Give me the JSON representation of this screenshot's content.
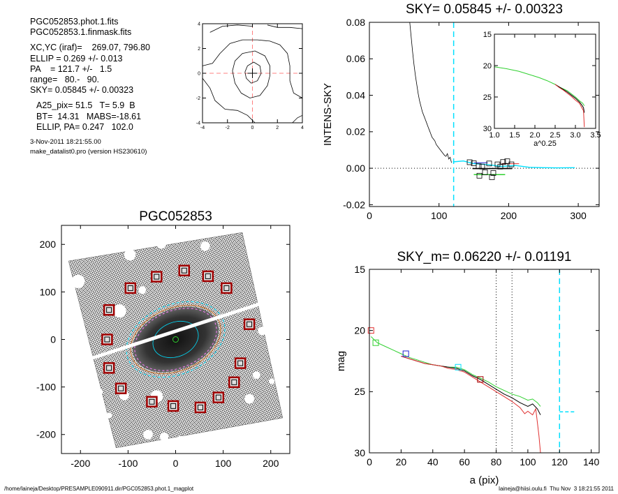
{
  "info": {
    "lines_a": [
      "PGC052853.phot.1.fits",
      "PGC052853.1.finmask.fits"
    ],
    "lines_b": [
      "XC,YC (iraf)=    269.07, 796.80",
      "ELLIP = 0.269 +/- 0.013",
      "PA    = 121.7 +/-   1.5",
      "range=   80.-   90.",
      "SKY= 0.05845 +/- 0.00323"
    ],
    "lines_c": [
      "A25_pix= 51.5   T= 5.9  B",
      "BT=  14.31   MABS=-18.61",
      "ELLIP, PA= 0.247   102.0"
    ],
    "date": "3-Nov-2011 18:21:55.00",
    "program": "make_datalist0.pro (version HS230610)"
  },
  "footer": {
    "left": "/home/laineja/Desktop/PRESAMPLE090911.dir/PGC052853.phot.1_magplot",
    "right": "laineja@hiisi.oulu.fi  Thu Nov  3 18:21:55 2011"
  },
  "colors": {
    "grid": "#ff8080",
    "cyan": "#00e0ff",
    "red": "#e03030",
    "green": "#30d030",
    "blue": "#2020d0",
    "darkred": "#a00000"
  },
  "chart_data": [
    {
      "type": "contour",
      "title": "",
      "xlim": [
        -4,
        4
      ],
      "ylim": [
        -4,
        4
      ],
      "xticks": [
        -4,
        -2,
        0,
        2,
        4
      ],
      "yticks": [
        -4,
        -2,
        0,
        2,
        4
      ],
      "tick_labels_x": [
        "-4",
        "-2",
        "0",
        "2",
        "4"
      ],
      "tick_labels_y": [
        "-4",
        "-2",
        "0",
        "2",
        "4"
      ],
      "crosshair": [
        0,
        0
      ],
      "contours": [
        [
          [
            -1.6,
            0.2
          ],
          [
            -1.4,
            1.0
          ],
          [
            -0.8,
            1.6
          ],
          [
            0.2,
            1.8
          ],
          [
            1.0,
            1.4
          ],
          [
            1.4,
            0.6
          ],
          [
            1.4,
            -0.2
          ],
          [
            1.2,
            -1.0
          ],
          [
            0.6,
            -1.8
          ],
          [
            -0.2,
            -2.0
          ],
          [
            -0.9,
            -1.6
          ],
          [
            -1.4,
            -0.8
          ],
          [
            -1.6,
            0.2
          ]
        ],
        [
          [
            -0.6,
            0.1
          ],
          [
            -0.4,
            0.6
          ],
          [
            0.1,
            0.9
          ],
          [
            0.6,
            0.6
          ],
          [
            0.7,
            0.0
          ],
          [
            0.4,
            -0.6
          ],
          [
            -0.1,
            -0.8
          ],
          [
            -0.5,
            -0.4
          ],
          [
            -0.6,
            0.1
          ]
        ],
        [
          [
            -3.4,
            3.3
          ],
          [
            -2.4,
            3.8
          ],
          [
            -1.2,
            3.9
          ],
          [
            0.0,
            3.8
          ]
        ],
        [
          [
            1.2,
            3.9
          ],
          [
            2.0,
            3.7
          ],
          [
            3.0,
            3.7
          ],
          [
            4.0,
            3.6
          ]
        ],
        [
          [
            -4.0,
            0.6
          ],
          [
            -3.2,
            0.8
          ],
          [
            -2.6,
            1.6
          ],
          [
            -1.8,
            2.4
          ],
          [
            -0.8,
            2.7
          ],
          [
            0.4,
            2.7
          ],
          [
            1.4,
            2.6
          ],
          [
            2.2,
            2.3
          ],
          [
            2.8,
            1.6
          ],
          [
            3.0,
            0.6
          ],
          [
            3.0,
            -0.6
          ],
          [
            3.3,
            -1.6
          ],
          [
            4.0,
            -2.0
          ]
        ],
        [
          [
            -4.0,
            -0.4
          ],
          [
            -3.4,
            -1.2
          ],
          [
            -3.0,
            -2.2
          ],
          [
            -2.2,
            -2.9
          ],
          [
            -1.2,
            -3.0
          ],
          [
            -0.4,
            -3.4
          ],
          [
            0.2,
            -4.0
          ]
        ],
        [
          [
            3.2,
            -4.0
          ],
          [
            3.6,
            -3.6
          ],
          [
            4.0,
            -3.4
          ]
        ]
      ]
    },
    {
      "type": "line",
      "title": "SKY= 0.05845 +/- 0.00323",
      "xlabel": "",
      "ylabel": "INTENS-SKY",
      "xlim": [
        0,
        330
      ],
      "ylim": [
        -0.021,
        0.08
      ],
      "xticks": [
        0,
        100,
        200,
        300
      ],
      "yticks": [
        -0.02,
        0.0,
        0.02,
        0.04,
        0.06,
        0.08
      ],
      "tick_labels_x": [
        "0",
        "100",
        "200",
        "300"
      ],
      "tick_labels_y": [
        "-0.02",
        "0.00",
        "0.02",
        "0.04",
        "0.06",
        "0.08"
      ],
      "vline_x": 121,
      "hline_y": 0,
      "profile": [
        [
          58,
          0.08
        ],
        [
          60,
          0.072
        ],
        [
          62,
          0.064
        ],
        [
          64,
          0.057
        ],
        [
          66,
          0.051
        ],
        [
          68,
          0.046
        ],
        [
          70,
          0.041
        ],
        [
          72,
          0.037
        ],
        [
          74,
          0.034
        ],
        [
          76,
          0.031
        ],
        [
          78,
          0.029
        ],
        [
          80,
          0.027
        ],
        [
          82,
          0.025
        ],
        [
          84,
          0.023
        ],
        [
          86,
          0.021
        ],
        [
          88,
          0.019
        ],
        [
          90,
          0.017
        ],
        [
          92,
          0.016
        ],
        [
          94,
          0.015
        ],
        [
          96,
          0.013
        ],
        [
          98,
          0.012
        ],
        [
          100,
          0.011
        ],
        [
          102,
          0.01
        ],
        [
          104,
          0.009
        ],
        [
          106,
          0.008
        ],
        [
          108,
          0.007
        ],
        [
          110,
          0.0065
        ],
        [
          112,
          0.008
        ],
        [
          114,
          0.005
        ],
        [
          116,
          0.006
        ],
        [
          118,
          0.003
        ]
      ],
      "cyan_line": [
        [
          120,
          0.0035
        ],
        [
          135,
          0.004
        ],
        [
          150,
          0.0025
        ],
        [
          170,
          0.002
        ],
        [
          190,
          0.001
        ],
        [
          210,
          0.0015
        ],
        [
          230,
          0.0005
        ],
        [
          250,
          0.0003
        ],
        [
          270,
          0.0002
        ],
        [
          295,
          0.0003
        ]
      ],
      "red_segment": [
        [
          190,
          0.0025
        ],
        [
          215,
          0.0025
        ]
      ],
      "green_segment": [
        [
          150,
          -0.0035
        ],
        [
          195,
          -0.0035
        ]
      ],
      "black_segment": [
        [
          148,
          -0.0002
        ],
        [
          205,
          -0.0002
        ]
      ],
      "blue_segment": [
        [
          150,
          0.003
        ],
        [
          170,
          0.003
        ]
      ],
      "squares": [
        [
          144,
          0.0033
        ],
        [
          150,
          0.0027
        ],
        [
          157,
          0.0011
        ],
        [
          158,
          -0.0041
        ],
        [
          162,
          0.0009
        ],
        [
          166,
          -0.0022
        ],
        [
          172,
          0.0026
        ],
        [
          176,
          -0.0049
        ],
        [
          178,
          -0.0026
        ],
        [
          184,
          0.0021
        ],
        [
          188,
          0.0009
        ],
        [
          192,
          0.0034
        ],
        [
          195,
          0.0013
        ],
        [
          198,
          0.0038
        ],
        [
          204,
          0.0021
        ]
      ],
      "inset": {
        "xlim": [
          1.0,
          3.5
        ],
        "ylim": [
          30,
          15
        ],
        "xlabel": "a^0.25",
        "xticks": [
          1.0,
          1.5,
          2.0,
          2.5,
          3.0,
          3.5
        ],
        "yticks": [
          15,
          20,
          25,
          30
        ],
        "tick_labels_x": [
          "1.0",
          "1.5",
          "2.0",
          "2.5",
          "3.0",
          "3.5"
        ],
        "tick_labels_y": [
          "15",
          "20",
          "25",
          "30"
        ],
        "series": [
          {
            "color": "green",
            "x": [
              1.0,
              1.3,
              1.6,
              1.9,
              2.1,
              2.3,
              2.5,
              2.6,
              2.7,
              2.8,
              2.9,
              3.0,
              3.1,
              3.18,
              3.22
            ],
            "y": [
              20.2,
              20.5,
              20.9,
              21.5,
              21.9,
              22.4,
              23.0,
              23.4,
              23.7,
              24.0,
              24.5,
              25.0,
              25.6,
              26.0,
              26.4
            ]
          },
          {
            "color": "black",
            "x": [
              2.5,
              2.6,
              2.7,
              2.8,
              2.9,
              3.0,
              3.1,
              3.15,
              3.2,
              3.22
            ],
            "y": [
              23.0,
              23.4,
              23.8,
              24.2,
              24.7,
              25.2,
              25.8,
              26.2,
              26.7,
              27.5
            ]
          },
          {
            "color": "red",
            "x": [
              2.5,
              2.6,
              2.7,
              2.8,
              2.9,
              3.0,
              3.1,
              3.15,
              3.2,
              3.22
            ],
            "y": [
              23.0,
              23.5,
              23.9,
              24.4,
              24.9,
              25.5,
              26.0,
              26.6,
              27.2,
              29.8
            ]
          }
        ]
      }
    },
    {
      "type": "scatter",
      "title": "PGC052853",
      "xlim": [
        -240,
        240
      ],
      "ylim": [
        -240,
        240
      ],
      "xticks": [
        -200,
        -100,
        0,
        100,
        200
      ],
      "yticks": [
        -200,
        -100,
        0,
        100,
        200
      ],
      "tick_labels_x": [
        "-200",
        "-100",
        "0",
        "100",
        "200"
      ],
      "tick_labels_y": [
        "-200",
        "-100",
        "0",
        "100",
        "200"
      ],
      "field_corners": [
        [
          -125,
          -228
        ],
        [
          225,
          -165
        ],
        [
          140,
          225
        ],
        [
          -225,
          165
        ]
      ],
      "galaxy": {
        "center": [
          0,
          0
        ],
        "a": 90,
        "b": 60,
        "pa_deg": 23
      },
      "streak": {
        "from": [
          -240,
          -60
        ],
        "to": [
          240,
          95
        ]
      },
      "holes": [
        [
          -205,
          122,
          14
        ],
        [
          -96,
          178,
          12
        ],
        [
          -30,
          201,
          10
        ],
        [
          62,
          196,
          10
        ],
        [
          185,
          148,
          14
        ],
        [
          206,
          75,
          11
        ],
        [
          120,
          -215,
          9
        ],
        [
          -160,
          -110,
          7
        ],
        [
          -40,
          -120,
          13
        ],
        [
          -118,
          60,
          14
        ],
        [
          -205,
          -25,
          7
        ],
        [
          145,
          -190,
          10
        ],
        [
          215,
          -10,
          8
        ],
        [
          -58,
          -200,
          10
        ],
        [
          -24,
          -205,
          9
        ],
        [
          170,
          -75,
          8
        ],
        [
          -180,
          -143,
          8
        ],
        [
          -108,
          -118,
          10
        ],
        [
          155,
          -125,
          10
        ],
        [
          10,
          -211,
          8
        ],
        [
          -140,
          -160,
          6
        ],
        [
          -70,
          104,
          8
        ],
        [
          202,
          -88,
          6
        ],
        [
          182,
          18,
          9
        ]
      ],
      "sky_boxes": [
        [
          -140,
          62
        ],
        [
          -95,
          108
        ],
        [
          -40,
          132
        ],
        [
          18,
          145
        ],
        [
          68,
          133
        ],
        [
          107,
          108
        ],
        [
          155,
          32
        ],
        [
          -144,
          0
        ],
        [
          -140,
          -60
        ],
        [
          -115,
          -103
        ],
        [
          -50,
          -131
        ],
        [
          -5,
          -140
        ],
        [
          52,
          -143
        ],
        [
          90,
          -122
        ],
        [
          123,
          -90
        ],
        [
          136,
          -50
        ]
      ]
    },
    {
      "type": "line",
      "title": "SKY_m=  0.06220 +/- 0.01191",
      "xlabel": "a (pix)",
      "ylabel": "mag",
      "xlim": [
        0,
        145
      ],
      "ylim": [
        30,
        15
      ],
      "xticks": [
        0,
        20,
        40,
        60,
        80,
        100,
        120,
        140
      ],
      "yticks": [
        15,
        20,
        25,
        30
      ],
      "tick_labels_x": [
        "0",
        "20",
        "40",
        "60",
        "80",
        "100",
        "120",
        "140"
      ],
      "tick_labels_y": [
        "15",
        "20",
        "25",
        "30"
      ],
      "dotted_vlines": [
        80,
        90
      ],
      "dashed_vline": 120,
      "cyan_hbar": {
        "x": [
          120,
          130
        ],
        "y": 26.65
      },
      "series": [
        {
          "color": "green",
          "x": [
            1,
            5,
            10,
            15,
            20,
            25,
            30,
            35,
            40,
            45,
            50,
            55,
            60,
            65,
            70,
            75,
            80,
            85,
            90,
            95,
            100,
            103,
            106,
            108
          ],
          "y": [
            20.5,
            21.0,
            21.3,
            21.6,
            21.9,
            22.2,
            22.4,
            22.6,
            22.8,
            22.9,
            23.0,
            23.0,
            23.2,
            23.6,
            23.9,
            24.2,
            24.6,
            24.9,
            25.2,
            25.4,
            25.7,
            25.6,
            25.9,
            26.2
          ]
        },
        {
          "color": "black",
          "x": [
            20,
            25,
            30,
            35,
            40,
            45,
            50,
            55,
            60,
            65,
            70,
            75,
            80,
            85,
            90,
            95,
            100,
            103,
            106,
            108
          ],
          "y": [
            22.1,
            22.3,
            22.5,
            22.7,
            22.8,
            22.9,
            23.0,
            23.1,
            23.3,
            23.7,
            24.0,
            24.4,
            24.8,
            25.2,
            25.5,
            25.9,
            26.2,
            26.0,
            26.4,
            26.9
          ]
        },
        {
          "color": "red",
          "x": [
            20,
            25,
            30,
            35,
            40,
            45,
            50,
            55,
            60,
            65,
            70,
            75,
            80,
            85,
            90,
            95,
            98,
            100,
            103,
            105,
            106,
            107,
            108
          ],
          "y": [
            22.1,
            22.3,
            22.5,
            22.7,
            22.8,
            22.9,
            23.1,
            23.2,
            23.4,
            23.8,
            24.2,
            24.6,
            25.0,
            25.4,
            25.8,
            26.3,
            26.8,
            26.6,
            26.9,
            26.4,
            27.5,
            28.6,
            30.0
          ]
        }
      ],
      "markers": [
        {
          "x": 1,
          "y": 20.0,
          "color": "red"
        },
        {
          "x": 4,
          "y": 21.0,
          "color": "green"
        },
        {
          "x": 23,
          "y": 21.9,
          "color": "blue"
        },
        {
          "x": 56,
          "y": 23.0,
          "color": "cyan"
        },
        {
          "x": 70,
          "y": 24.0,
          "color": "darkred"
        }
      ]
    }
  ]
}
